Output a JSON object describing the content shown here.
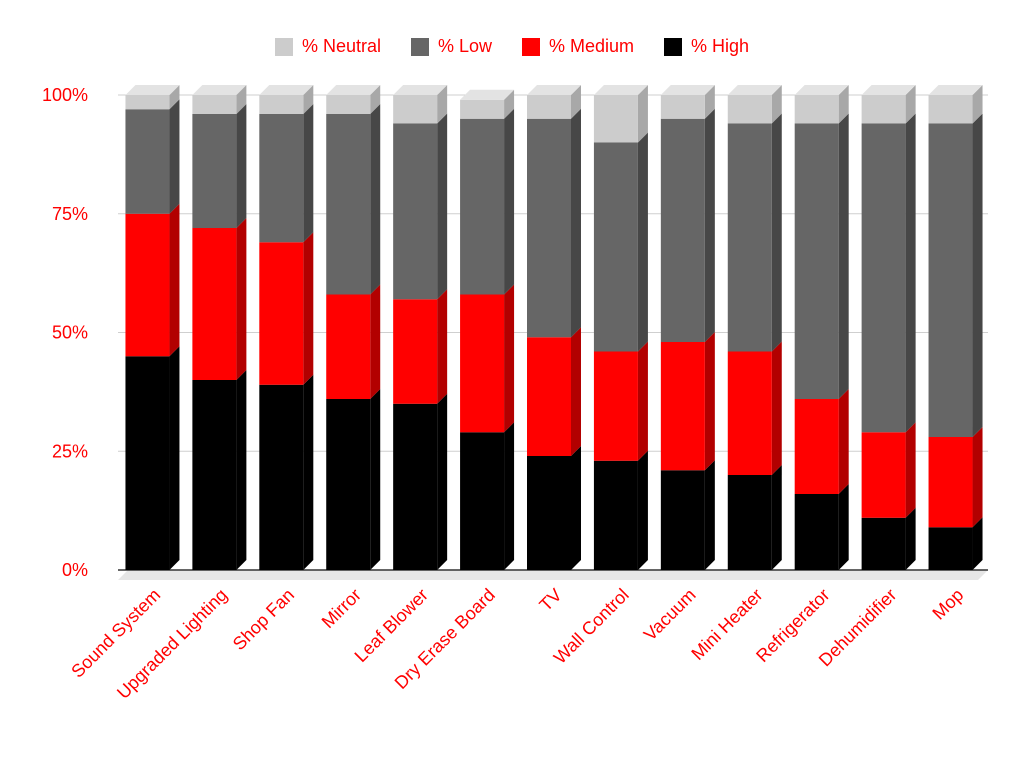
{
  "chart_data": {
    "type": "bar",
    "stacked": true,
    "percent": true,
    "three_d": true,
    "categories": [
      "Sound System",
      "Upgraded Lighting",
      "Shop Fan",
      "Mirror",
      "Leaf Blower",
      "Dry Erase Board",
      "TV",
      "Wall Control",
      "Vacuum",
      "Mini Heater",
      "Refrigerator",
      "Dehumidifier",
      "Mop"
    ],
    "series": [
      {
        "name": "% High",
        "color": "#000000",
        "side_color": "#000000",
        "values": [
          45,
          40,
          39,
          36,
          35,
          29,
          24,
          23,
          21,
          20,
          16,
          11,
          9
        ]
      },
      {
        "name": "% Medium",
        "color": "#ff0000",
        "side_color": "#b20000",
        "values": [
          30,
          32,
          30,
          22,
          22,
          29,
          25,
          23,
          27,
          26,
          20,
          18,
          19
        ]
      },
      {
        "name": "% Low",
        "color": "#666666",
        "side_color": "#474747",
        "values": [
          22,
          24,
          27,
          38,
          37,
          37,
          46,
          44,
          47,
          48,
          58,
          65,
          66
        ]
      },
      {
        "name": "% Neutral",
        "color": "#cccccc",
        "side_color": "#a8a8a8",
        "values": [
          3,
          4,
          4,
          4,
          6,
          4,
          5,
          10,
          5,
          6,
          6,
          6,
          6
        ]
      }
    ],
    "legend_order": [
      "% Neutral",
      "% Low",
      "% Medium",
      "% High"
    ],
    "yticks": [
      "0%",
      "25%",
      "50%",
      "75%",
      "100%"
    ],
    "ylim": [
      0,
      100
    ],
    "grid": true,
    "legend_position": "top",
    "label_color": "#ff0000"
  }
}
